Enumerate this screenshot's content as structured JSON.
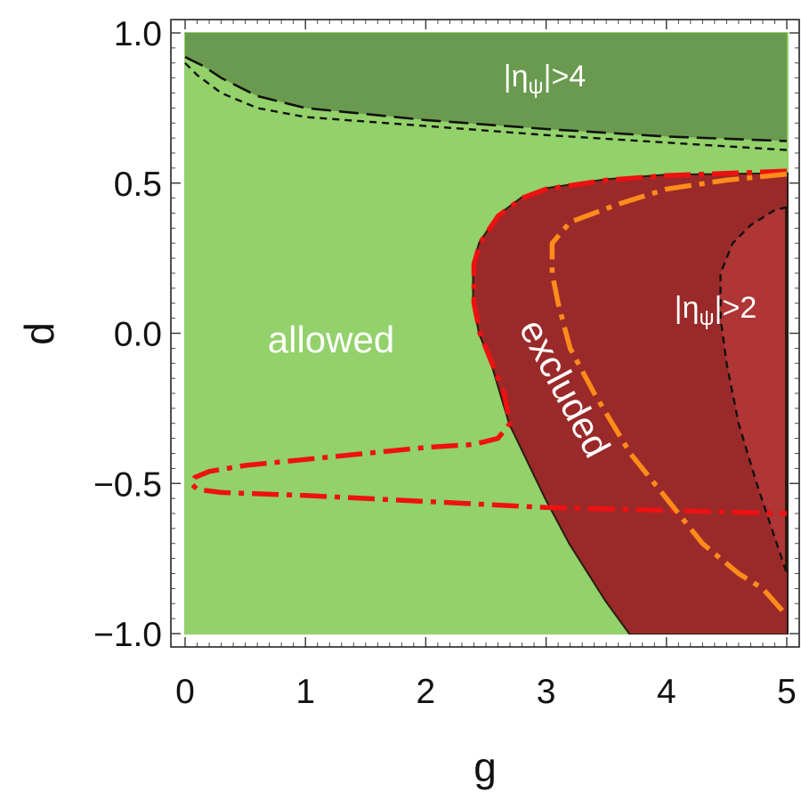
{
  "chart_data": {
    "type": "area",
    "xlabel": "g",
    "ylabel": "d",
    "xlim": [
      0,
      5
    ],
    "ylim": [
      -1,
      1
    ],
    "x_ticks": [
      0,
      1,
      2,
      3,
      4,
      5
    ],
    "y_ticks": [
      -1.0,
      -0.5,
      0.0,
      0.5,
      1.0
    ],
    "x_tick_labels": [
      "0",
      "1",
      "2",
      "3",
      "4",
      "5"
    ],
    "y_tick_labels": [
      "−1.0",
      "−0.5",
      "0.0",
      "0.5",
      "1.0"
    ],
    "grid": false,
    "colors": {
      "allowed": "#93d16a",
      "eta4_region": "#6a9a4f",
      "excluded": "#b03535",
      "eta2_region": "#9a2a2a",
      "red_curve": "#ee1111",
      "orange_curve": "#ff8c1a",
      "boundary": "#2a1a10"
    },
    "labels": {
      "allowed": "allowed",
      "excluded": "excluded",
      "eta4": "|ηψ|>4",
      "eta2": "|ηψ|>2",
      "eta4_parts": {
        "open": "|η",
        "sub": "ψ",
        "close": "|>4"
      },
      "eta2_parts": {
        "open": "|η",
        "sub": "ψ",
        "close": "|>2"
      }
    },
    "regions": {
      "eta4_region": [
        [
          0.0,
          1.0
        ],
        [
          5.0,
          1.0
        ],
        [
          5.0,
          0.64
        ],
        [
          4.0,
          0.655
        ],
        [
          3.0,
          0.68
        ],
        [
          2.0,
          0.71
        ],
        [
          1.5,
          0.73
        ],
        [
          1.0,
          0.75
        ],
        [
          0.6,
          0.79
        ],
        [
          0.3,
          0.85
        ],
        [
          0.15,
          0.89
        ],
        [
          0.05,
          0.91
        ],
        [
          0.0,
          0.92
        ]
      ],
      "excluded": [
        [
          5.0,
          0.53
        ],
        [
          4.0,
          0.525
        ],
        [
          3.5,
          0.51
        ],
        [
          3.0,
          0.48
        ],
        [
          2.8,
          0.45
        ],
        [
          2.6,
          0.39
        ],
        [
          2.45,
          0.3
        ],
        [
          2.4,
          0.23
        ],
        [
          2.4,
          0.1
        ],
        [
          2.45,
          0.0
        ],
        [
          2.55,
          -0.1
        ],
        [
          2.7,
          -0.3
        ],
        [
          3.0,
          -0.55
        ],
        [
          3.2,
          -0.7
        ],
        [
          3.5,
          -0.89
        ],
        [
          3.7,
          -1.0
        ],
        [
          5.0,
          -1.0
        ]
      ],
      "eta2_region": [
        [
          5.0,
          0.42
        ],
        [
          4.9,
          0.41
        ],
        [
          4.7,
          0.36
        ],
        [
          4.55,
          0.3
        ],
        [
          4.45,
          0.2
        ],
        [
          4.45,
          0.05
        ],
        [
          4.5,
          -0.1
        ],
        [
          4.6,
          -0.3
        ],
        [
          4.75,
          -0.5
        ],
        [
          4.9,
          -0.68
        ],
        [
          5.0,
          -0.8
        ],
        [
          5.0,
          -1.0
        ],
        [
          3.7,
          -1.0
        ],
        [
          3.5,
          -0.89
        ],
        [
          3.2,
          -0.7
        ],
        [
          3.0,
          -0.55
        ],
        [
          2.7,
          -0.3
        ],
        [
          2.55,
          -0.1
        ],
        [
          2.45,
          0.0
        ],
        [
          2.4,
          0.1
        ],
        [
          2.4,
          0.23
        ],
        [
          2.45,
          0.3
        ],
        [
          2.6,
          0.39
        ],
        [
          2.8,
          0.45
        ],
        [
          3.0,
          0.48
        ],
        [
          3.5,
          0.51
        ],
        [
          4.0,
          0.525
        ],
        [
          5.0,
          0.53
        ]
      ]
    },
    "series": [
      {
        "style": "long-dashed",
        "color": "#111111",
        "points": [
          [
            0.0,
            0.92
          ],
          [
            0.05,
            0.91
          ],
          [
            0.15,
            0.89
          ],
          [
            0.3,
            0.85
          ],
          [
            0.6,
            0.79
          ],
          [
            1.0,
            0.75
          ],
          [
            1.5,
            0.73
          ],
          [
            2.0,
            0.71
          ],
          [
            3.0,
            0.68
          ],
          [
            4.0,
            0.655
          ],
          [
            5.0,
            0.64
          ]
        ]
      },
      {
        "style": "short-dashed",
        "color": "#111111",
        "points": [
          [
            0.0,
            0.9
          ],
          [
            0.1,
            0.86
          ],
          [
            0.3,
            0.8
          ],
          [
            0.6,
            0.75
          ],
          [
            1.0,
            0.72
          ],
          [
            2.0,
            0.69
          ],
          [
            3.0,
            0.66
          ],
          [
            4.0,
            0.635
          ],
          [
            5.0,
            0.61
          ]
        ]
      },
      {
        "style": "short-dashed",
        "color": "#111111",
        "points": [
          [
            5.0,
            0.42
          ],
          [
            4.9,
            0.41
          ],
          [
            4.7,
            0.36
          ],
          [
            4.55,
            0.3
          ],
          [
            4.45,
            0.2
          ],
          [
            4.45,
            0.05
          ],
          [
            4.5,
            -0.1
          ],
          [
            4.6,
            -0.3
          ],
          [
            4.75,
            -0.5
          ],
          [
            4.9,
            -0.68
          ],
          [
            5.0,
            -0.8
          ]
        ]
      },
      {
        "style": "dash-dot",
        "color": "#ee1111",
        "points": [
          [
            5.0,
            0.54
          ],
          [
            4.0,
            0.525
          ],
          [
            3.5,
            0.51
          ],
          [
            3.0,
            0.48
          ],
          [
            2.8,
            0.45
          ],
          [
            2.6,
            0.39
          ],
          [
            2.45,
            0.3
          ],
          [
            2.4,
            0.23
          ],
          [
            2.4,
            0.1
          ],
          [
            2.45,
            0.0
          ],
          [
            2.55,
            -0.1
          ],
          [
            2.65,
            -0.2
          ],
          [
            2.7,
            -0.3
          ],
          [
            2.6,
            -0.35
          ],
          [
            2.4,
            -0.37
          ],
          [
            2.0,
            -0.38
          ],
          [
            1.5,
            -0.4
          ],
          [
            1.0,
            -0.42
          ],
          [
            0.5,
            -0.44
          ],
          [
            0.2,
            -0.46
          ],
          [
            0.08,
            -0.48
          ],
          [
            0.05,
            -0.5
          ],
          [
            0.1,
            -0.52
          ],
          [
            0.3,
            -0.53
          ],
          [
            1.0,
            -0.54
          ],
          [
            2.0,
            -0.56
          ],
          [
            3.0,
            -0.58
          ],
          [
            4.0,
            -0.59
          ],
          [
            5.0,
            -0.6
          ]
        ]
      },
      {
        "style": "dash-dot",
        "color": "#ff8c1a",
        "points": [
          [
            5.0,
            0.53
          ],
          [
            4.5,
            0.51
          ],
          [
            4.0,
            0.48
          ],
          [
            3.6,
            0.43
          ],
          [
            3.2,
            0.37
          ],
          [
            3.05,
            0.3
          ],
          [
            3.05,
            0.2
          ],
          [
            3.1,
            0.1
          ],
          [
            3.2,
            -0.05
          ],
          [
            3.4,
            -0.2
          ],
          [
            3.7,
            -0.4
          ],
          [
            4.0,
            -0.55
          ],
          [
            4.3,
            -0.7
          ],
          [
            4.6,
            -0.8
          ],
          [
            4.8,
            -0.85
          ],
          [
            5.0,
            -0.94
          ]
        ]
      }
    ]
  }
}
